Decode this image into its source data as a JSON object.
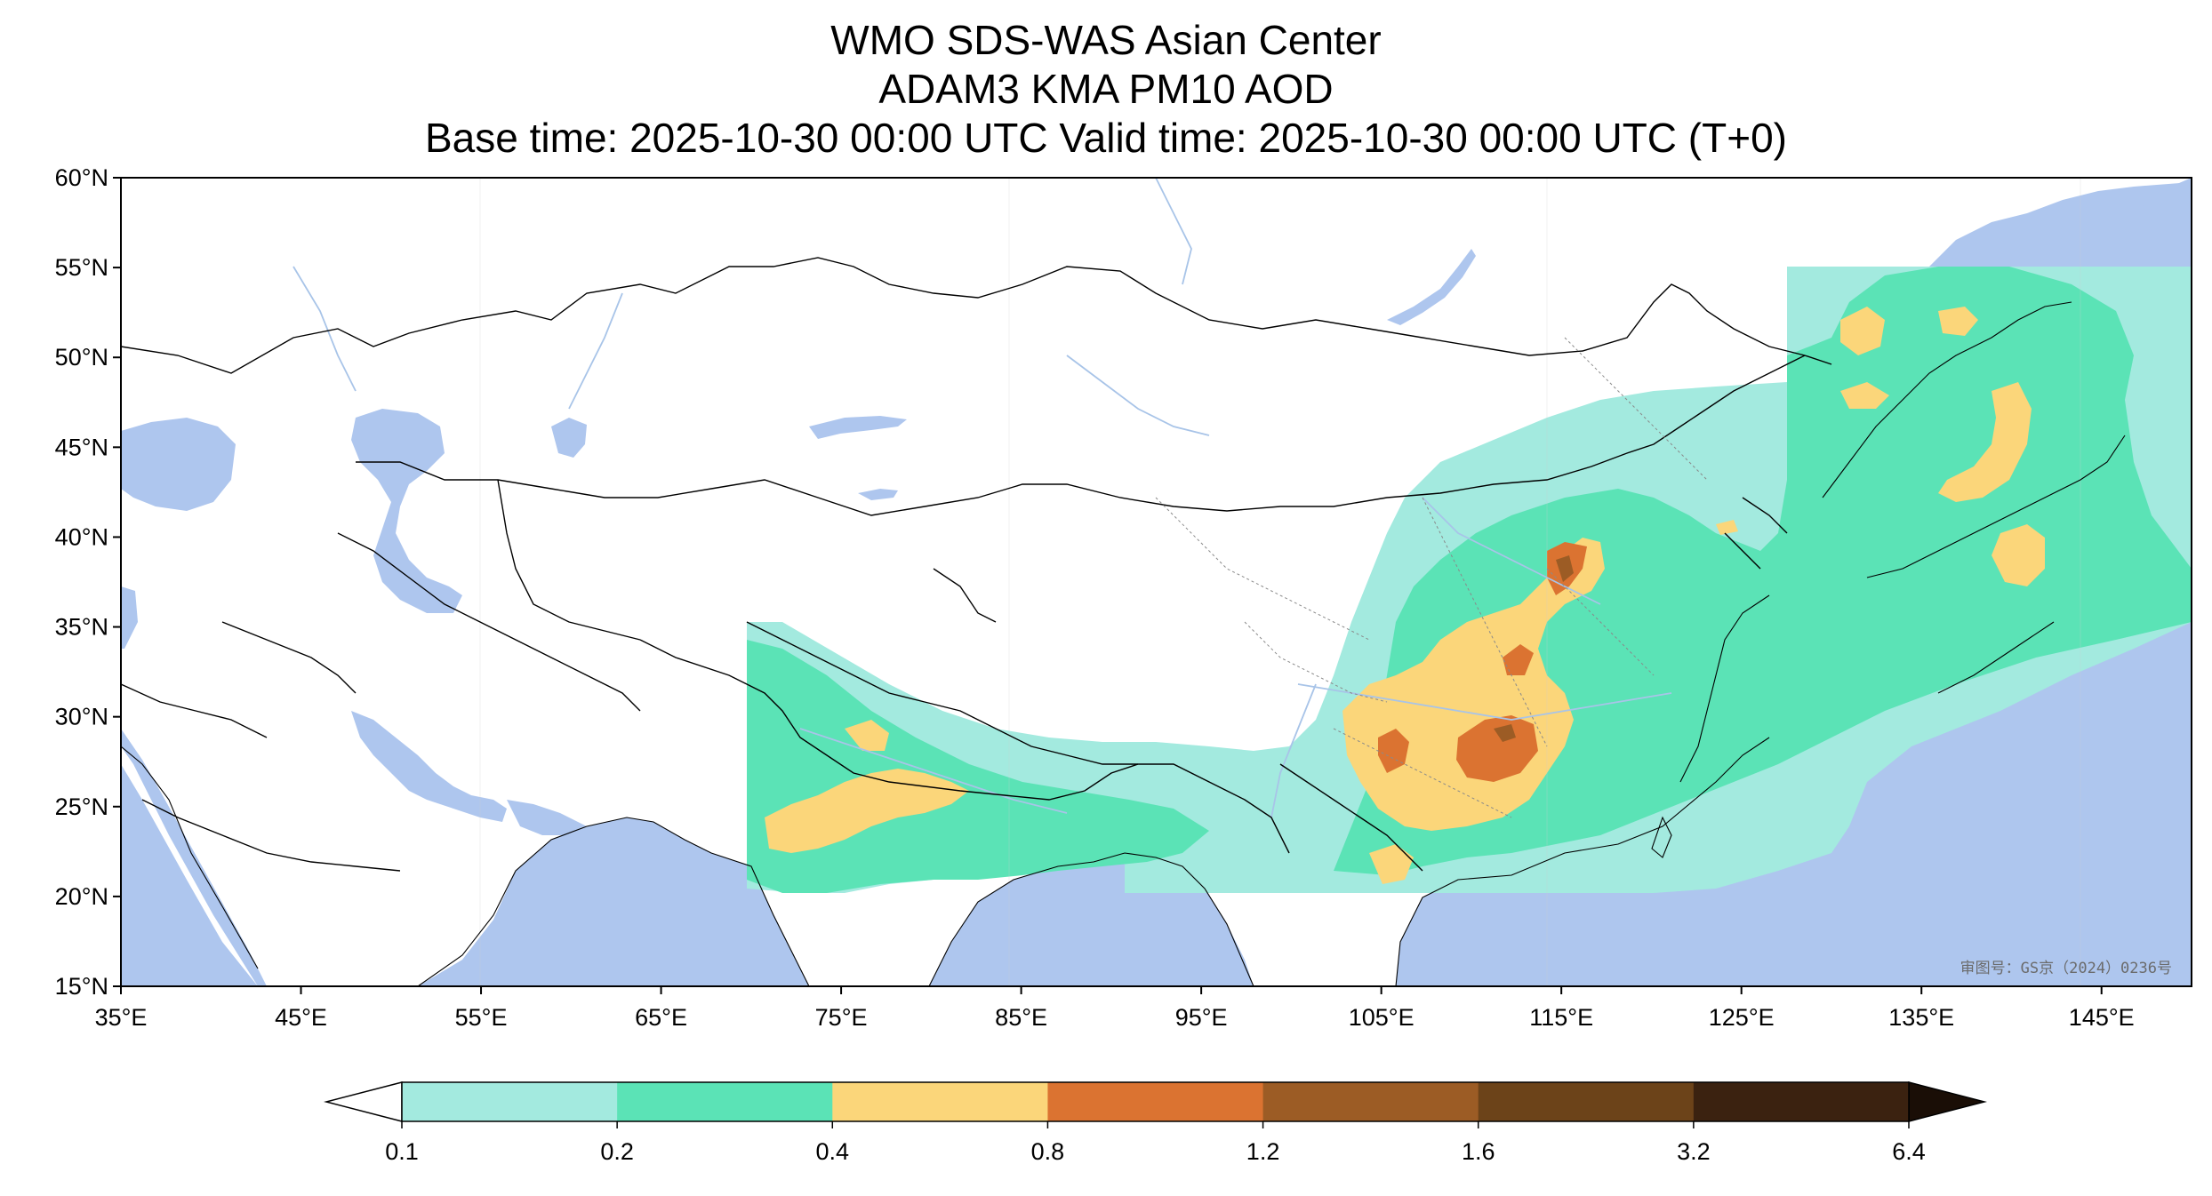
{
  "title": {
    "line1": "WMO SDS-WAS Asian Center",
    "line2": "ADAM3 KMA PM10 AOD",
    "line3": "Base time: 2025-10-30 00:00 UTC Valid time: 2025-10-30 00:00 UTC (T+0)"
  },
  "map": {
    "projection": "PlateCarree",
    "lon_range": [
      35,
      150
    ],
    "lat_range": [
      15,
      60
    ],
    "lon_ticks": [
      "35°E",
      "45°E",
      "55°E",
      "65°E",
      "75°E",
      "85°E",
      "95°E",
      "105°E",
      "115°E",
      "125°E",
      "135°E",
      "145°E"
    ],
    "lat_ticks": [
      "60°N",
      "55°N",
      "50°N",
      "45°N",
      "40°N",
      "35°N",
      "30°N",
      "25°N",
      "20°N",
      "15°N"
    ],
    "approval_stamp": "审图号：GS京（2024）0236号",
    "colors": {
      "ocean": "#aec6ee",
      "land": "#ffffff",
      "border": "#000000",
      "river": "#a8c4e8"
    }
  },
  "colorbar": {
    "levels": [
      "0.1",
      "0.2",
      "0.4",
      "0.8",
      "1.2",
      "1.6",
      "3.2",
      "6.4"
    ],
    "colors": [
      "#a3eadf",
      "#5be3b6",
      "#fbd67a",
      "#db7331",
      "#9c5c25",
      "#6c4319",
      "#3b2210"
    ],
    "extend": "both",
    "under_color": "#ffffff",
    "over_color": "#1a0e06"
  }
}
